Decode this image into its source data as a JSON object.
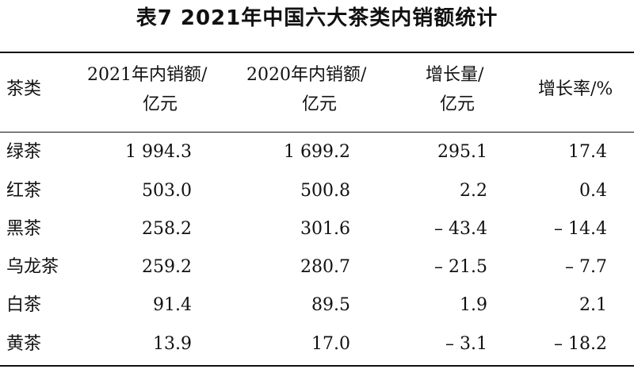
{
  "title": "表7  2021年中国六大茶类内销额统计",
  "headers": {
    "category": "茶类",
    "sales2021_line1": "2021年内销额/",
    "sales2021_line2": "亿元",
    "sales2020_line1": "2020年内销额/",
    "sales2020_line2": "亿元",
    "growth_line1": "增长量/",
    "growth_line2": "亿元",
    "rate": "增长率/%"
  },
  "rows": [
    {
      "name": "绿茶",
      "sales2021": "1 994.3",
      "sales2020": "1 699.2",
      "growth": "295.1",
      "rate": "17.4"
    },
    {
      "name": "红茶",
      "sales2021": "503.0",
      "sales2020": "500.8",
      "growth": "2.2",
      "rate": "0.4"
    },
    {
      "name": "黑茶",
      "sales2021": "258.2",
      "sales2020": "301.6",
      "growth": "– 43.4",
      "rate": "– 14.4"
    },
    {
      "name": "乌龙茶",
      "sales2021": "259.2",
      "sales2020": "280.7",
      "growth": "– 21.5",
      "rate": "– 7.7"
    },
    {
      "name": "白茶",
      "sales2021": "91.4",
      "sales2020": "89.5",
      "growth": "1.9",
      "rate": "2.1"
    },
    {
      "name": "黄茶",
      "sales2021": "13.9",
      "sales2020": "17.0",
      "growth": "– 3.1",
      "rate": "– 18.2"
    }
  ]
}
